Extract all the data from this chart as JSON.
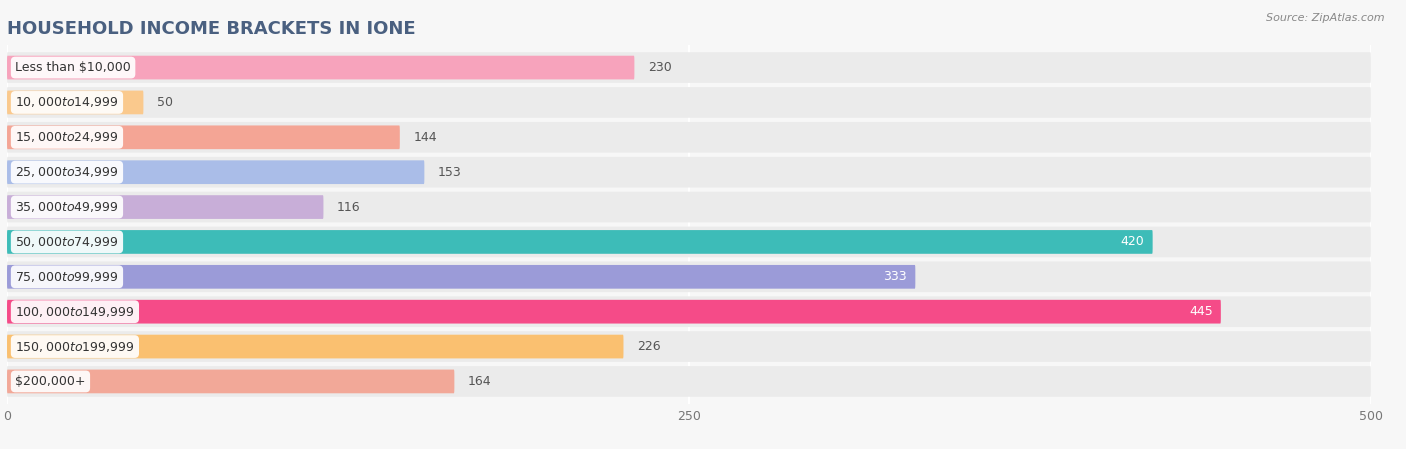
{
  "title": "HOUSEHOLD INCOME BRACKETS IN IONE",
  "source": "Source: ZipAtlas.com",
  "categories": [
    "Less than $10,000",
    "$10,000 to $14,999",
    "$15,000 to $24,999",
    "$25,000 to $34,999",
    "$35,000 to $49,999",
    "$50,000 to $74,999",
    "$75,000 to $99,999",
    "$100,000 to $149,999",
    "$150,000 to $199,999",
    "$200,000+"
  ],
  "values": [
    230,
    50,
    144,
    153,
    116,
    420,
    333,
    445,
    226,
    164
  ],
  "bar_colors": [
    "#F7A3BC",
    "#FAC98D",
    "#F4A595",
    "#AABDE8",
    "#C8AED8",
    "#3DBCB8",
    "#9B9BD8",
    "#F54B88",
    "#FAC070",
    "#F2A898"
  ],
  "xlim": [
    0,
    500
  ],
  "xticks": [
    0,
    250,
    500
  ],
  "bg_color": "#f7f7f7",
  "row_bg_color": "#ebebeb",
  "title_fontsize": 13,
  "label_fontsize": 9,
  "value_fontsize": 9,
  "title_color": "#4a6080",
  "label_color": "#333333",
  "value_color_light": "#555555",
  "value_color_dark": "#ffffff"
}
